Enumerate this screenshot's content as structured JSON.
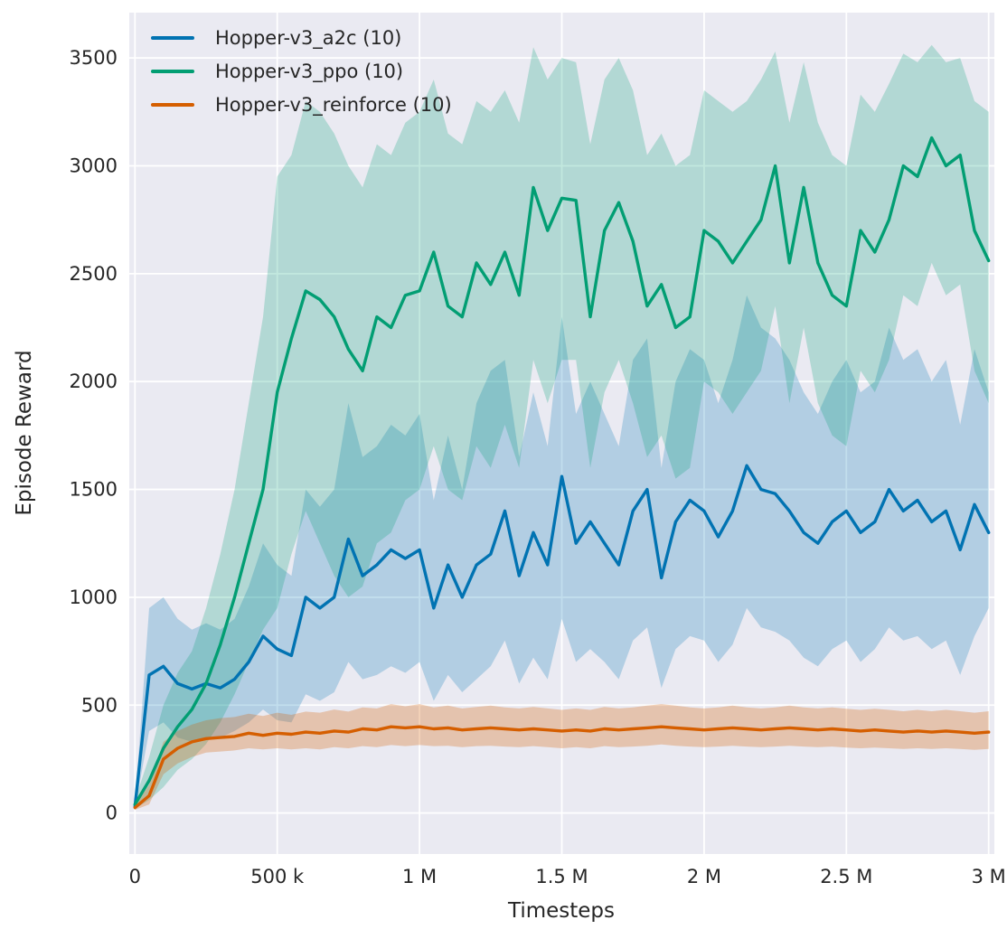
{
  "figure": {
    "background": "#ffffff",
    "plot_background": "#eaeaf2",
    "grid_color": "#ffffff",
    "text_color": "#262626"
  },
  "chart_data": {
    "type": "line",
    "title": "",
    "xlabel": "Timesteps",
    "ylabel": "Episode Reward",
    "grid": true,
    "legend_position": "upper-left",
    "x_unit": 1000,
    "xlim_k": [
      -20,
      3020
    ],
    "ylim": [
      -190,
      3710
    ],
    "xticks": [
      {
        "v": 0,
        "label": "0"
      },
      {
        "v": 500,
        "label": "500 k"
      },
      {
        "v": 1000,
        "label": "1 M"
      },
      {
        "v": 1500,
        "label": "1.5 M"
      },
      {
        "v": 2000,
        "label": "2 M"
      },
      {
        "v": 2500,
        "label": "2.5 M"
      },
      {
        "v": 3000,
        "label": "3 M"
      }
    ],
    "yticks": [
      {
        "v": 0,
        "label": "0"
      },
      {
        "v": 500,
        "label": "500"
      },
      {
        "v": 1000,
        "label": "1000"
      },
      {
        "v": 1500,
        "label": "1500"
      },
      {
        "v": 2000,
        "label": "2000"
      },
      {
        "v": 2500,
        "label": "2500"
      },
      {
        "v": 3000,
        "label": "3000"
      },
      {
        "v": 3500,
        "label": "3500"
      }
    ],
    "x_k": [
      0,
      50,
      100,
      150,
      200,
      250,
      300,
      350,
      400,
      450,
      500,
      550,
      600,
      650,
      700,
      750,
      800,
      850,
      900,
      950,
      1000,
      1050,
      1100,
      1150,
      1200,
      1250,
      1300,
      1350,
      1400,
      1450,
      1500,
      1550,
      1600,
      1650,
      1700,
      1750,
      1800,
      1850,
      1900,
      1950,
      2000,
      2050,
      2100,
      2150,
      2200,
      2250,
      2300,
      2350,
      2400,
      2450,
      2500,
      2550,
      2600,
      2650,
      2700,
      2750,
      2800,
      2850,
      2900,
      2950,
      3000
    ],
    "series": [
      {
        "key": "a2c",
        "name": "Hopper-v3_a2c (10)",
        "color": "#0173b2",
        "band_alpha": 0.24,
        "mean": [
          30,
          640,
          680,
          600,
          575,
          600,
          580,
          620,
          700,
          820,
          760,
          730,
          1000,
          950,
          1000,
          1270,
          1100,
          1150,
          1220,
          1180,
          1220,
          950,
          1150,
          1000,
          1150,
          1200,
          1400,
          1100,
          1300,
          1150,
          1560,
          1250,
          1350,
          1250,
          1150,
          1400,
          1500,
          1090,
          1350,
          1450,
          1400,
          1280,
          1400,
          1610,
          1500,
          1480,
          1400,
          1300,
          1250,
          1350,
          1400,
          1300,
          1350,
          1500,
          1400,
          1450,
          1350,
          1400,
          1220,
          1430,
          1300
        ],
        "lower": [
          20,
          380,
          420,
          350,
          330,
          340,
          350,
          380,
          420,
          480,
          430,
          420,
          550,
          520,
          560,
          700,
          620,
          640,
          680,
          650,
          700,
          520,
          640,
          560,
          620,
          680,
          800,
          600,
          720,
          620,
          900,
          700,
          760,
          700,
          620,
          800,
          860,
          580,
          760,
          820,
          800,
          700,
          780,
          950,
          860,
          840,
          800,
          720,
          680,
          760,
          800,
          700,
          760,
          860,
          800,
          820,
          760,
          800,
          640,
          820,
          950
        ],
        "upper": [
          40,
          950,
          1000,
          900,
          850,
          880,
          850,
          900,
          1050,
          1250,
          1150,
          1100,
          1500,
          1420,
          1500,
          1900,
          1650,
          1700,
          1800,
          1750,
          1850,
          1450,
          1750,
          1500,
          1900,
          2050,
          2100,
          1650,
          1950,
          1700,
          2300,
          1850,
          2000,
          1850,
          1700,
          2100,
          2200,
          1600,
          2000,
          2150,
          2100,
          1900,
          2100,
          2400,
          2250,
          2200,
          2100,
          1950,
          1850,
          2000,
          2100,
          1950,
          2000,
          2250,
          2100,
          2150,
          2000,
          2100,
          1800,
          2150,
          1950
        ]
      },
      {
        "key": "ppo",
        "name": "Hopper-v3_ppo (10)",
        "color": "#029e73",
        "band_alpha": 0.24,
        "mean": [
          40,
          150,
          300,
          400,
          480,
          600,
          780,
          1000,
          1250,
          1500,
          1950,
          2200,
          2420,
          2380,
          2300,
          2150,
          2050,
          2300,
          2250,
          2400,
          2420,
          2600,
          2350,
          2300,
          2550,
          2450,
          2600,
          2400,
          2900,
          2700,
          2850,
          2840,
          2300,
          2700,
          2830,
          2650,
          2350,
          2450,
          2250,
          2300,
          2700,
          2650,
          2550,
          2650,
          2750,
          3000,
          2550,
          2900,
          2550,
          2400,
          2350,
          2700,
          2600,
          2750,
          3000,
          2950,
          3130,
          3000,
          3050,
          2700,
          2560
        ],
        "lower": [
          20,
          60,
          120,
          200,
          250,
          320,
          420,
          550,
          700,
          850,
          950,
          1200,
          1400,
          1250,
          1100,
          1000,
          1050,
          1250,
          1300,
          1450,
          1500,
          1700,
          1500,
          1450,
          1700,
          1600,
          1800,
          1600,
          2100,
          1900,
          2100,
          2100,
          1600,
          1950,
          2100,
          1900,
          1650,
          1750,
          1550,
          1600,
          2000,
          1950,
          1850,
          1950,
          2050,
          2350,
          1900,
          2250,
          1900,
          1750,
          1700,
          2050,
          1950,
          2100,
          2400,
          2350,
          2550,
          2400,
          2450,
          2050,
          1900
        ],
        "upper": [
          60,
          260,
          500,
          650,
          750,
          950,
          1200,
          1500,
          1900,
          2300,
          2950,
          3050,
          3300,
          3250,
          3150,
          3000,
          2900,
          3100,
          3050,
          3200,
          3250,
          3400,
          3150,
          3100,
          3300,
          3250,
          3350,
          3200,
          3550,
          3400,
          3500,
          3480,
          3100,
          3400,
          3500,
          3350,
          3050,
          3150,
          3000,
          3050,
          3350,
          3300,
          3250,
          3300,
          3400,
          3530,
          3200,
          3480,
          3200,
          3050,
          3000,
          3330,
          3250,
          3380,
          3520,
          3480,
          3560,
          3480,
          3500,
          3300,
          3250
        ]
      },
      {
        "key": "reinforce",
        "name": "Hopper-v3_reinforce (10)",
        "color": "#d55e00",
        "band_alpha": 0.28,
        "mean": [
          25,
          80,
          250,
          300,
          330,
          345,
          350,
          355,
          370,
          360,
          370,
          365,
          375,
          370,
          380,
          375,
          390,
          385,
          400,
          395,
          400,
          390,
          395,
          385,
          390,
          395,
          390,
          385,
          390,
          385,
          380,
          385,
          380,
          390,
          385,
          390,
          395,
          400,
          395,
          390,
          385,
          390,
          395,
          390,
          385,
          390,
          395,
          390,
          385,
          390,
          385,
          380,
          385,
          380,
          375,
          380,
          375,
          380,
          375,
          370,
          375
        ],
        "lower": [
          15,
          40,
          180,
          230,
          260,
          280,
          285,
          290,
          300,
          295,
          300,
          295,
          300,
          295,
          305,
          300,
          310,
          305,
          315,
          310,
          315,
          310,
          312,
          305,
          310,
          312,
          308,
          305,
          310,
          305,
          300,
          305,
          300,
          310,
          305,
          308,
          312,
          318,
          312,
          308,
          305,
          308,
          312,
          308,
          305,
          308,
          312,
          308,
          305,
          308,
          303,
          300,
          303,
          300,
          297,
          300,
          297,
          300,
          297,
          293,
          297
        ],
        "upper": [
          35,
          130,
          330,
          380,
          410,
          430,
          440,
          445,
          460,
          450,
          465,
          455,
          470,
          465,
          480,
          470,
          490,
          485,
          505,
          495,
          505,
          490,
          498,
          485,
          492,
          498,
          490,
          485,
          492,
          485,
          478,
          485,
          478,
          492,
          485,
          490,
          498,
          505,
          498,
          490,
          485,
          490,
          498,
          490,
          485,
          490,
          498,
          490,
          485,
          490,
          483,
          478,
          483,
          478,
          472,
          478,
          472,
          478,
          472,
          465,
          472
        ]
      }
    ]
  }
}
